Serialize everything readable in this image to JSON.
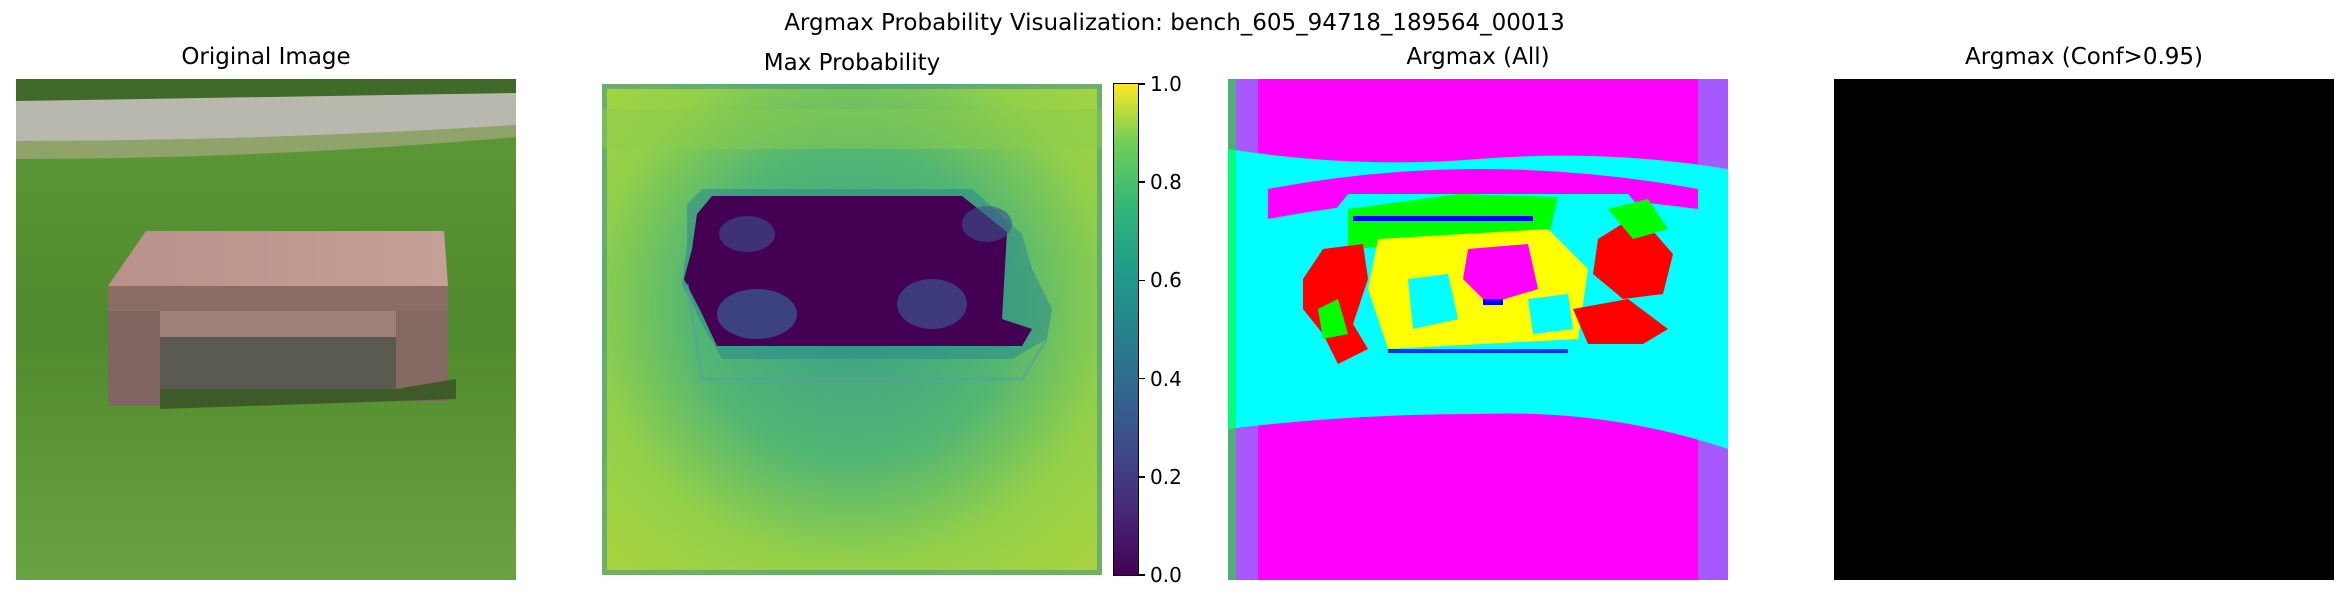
{
  "figure": {
    "suptitle": "Argmax Probability Visualization: bench_605_94718_189564_00013"
  },
  "panels": [
    {
      "id": "original",
      "title": "Original Image"
    },
    {
      "id": "maxprob",
      "title": "Max Probability"
    },
    {
      "id": "argmax_all",
      "title": "Argmax (All)"
    },
    {
      "id": "argmax_conf",
      "title": "Argmax (Conf>0.95)"
    }
  ],
  "colorbar": {
    "ticks": [
      "0.0",
      "0.2",
      "0.4",
      "0.6",
      "0.8",
      "1.0"
    ],
    "vmin": 0.0,
    "vmax": 1.0,
    "colormap": "viridis"
  },
  "chart_data": {
    "type": "heatmap",
    "title": "Argmax Probability Visualization: bench_605_94718_189564_00013",
    "subplots": [
      "Original Image",
      "Max Probability",
      "Argmax (All)",
      "Argmax (Conf>0.95)"
    ],
    "colorbar_range": [
      0.0,
      1.0
    ],
    "colorbar_ticks": [
      0.0,
      0.2,
      0.4,
      0.6,
      0.8,
      1.0
    ],
    "colors": {
      "viridis_low": "#440154",
      "viridis_mid": "#21918c",
      "viridis_high": "#fde725",
      "argmax_classes": [
        "#ff00ff",
        "#00ffff",
        "#ffff00",
        "#ff0000",
        "#00ff00",
        "#0000ff"
      ],
      "conf_panel": "#000000"
    }
  }
}
